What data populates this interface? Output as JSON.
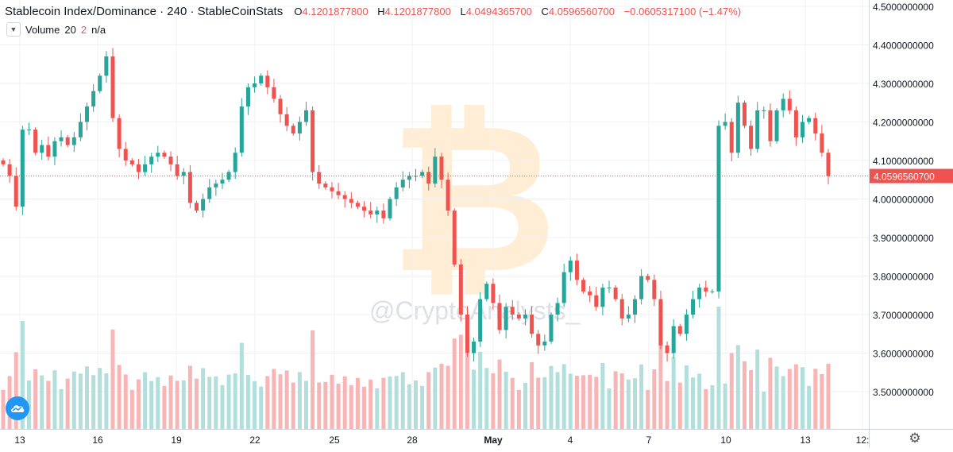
{
  "header": {
    "title": "Stablecoin Index/Dominance · 240 · StableCoinStats",
    "o_label": "O",
    "o_value": "4.1201877800",
    "h_label": "H",
    "h_value": "4.1201877800",
    "l_label": "L",
    "l_value": "4.0494365700",
    "c_label": "C",
    "c_value": "4.0596560700",
    "change": "−0.0605317100 (−1.47%)"
  },
  "volume_indicator": {
    "label": "Volume",
    "param1": "20",
    "param2": "2",
    "value": "n/a"
  },
  "watermark": "@CryptoAnalysts_",
  "colors": {
    "up": "#26a69a",
    "down": "#ef5350",
    "up_volume": "#b2dfdb",
    "down_volume": "#f7b6b5",
    "grid": "#eef0f4",
    "price_line": "#ef5350"
  },
  "chart_data": {
    "type": "candlestick",
    "title": "Stablecoin Index/Dominance",
    "timeframe": "240",
    "source": "StableCoinStats",
    "ylim": [
      3.42,
      4.5
    ],
    "y_ticks": [
      "3.5000000000",
      "3.6000000000",
      "3.7000000000",
      "3.8000000000",
      "3.9000000000",
      "4.0000000000",
      "4.1000000000",
      "4.2000000000",
      "4.3000000000",
      "4.4000000000",
      "4.5000000000"
    ],
    "x_ticks": [
      "13",
      "16",
      "19",
      "22",
      "25",
      "28",
      "May",
      "4",
      "7",
      "10",
      "13",
      "12:"
    ],
    "last_price": "4.0596560700",
    "grid": true,
    "series_close": [
      4.09,
      4.06,
      3.98,
      4.18,
      4.18,
      4.12,
      4.14,
      4.11,
      4.15,
      4.16,
      4.14,
      4.16,
      4.2,
      4.24,
      4.28,
      4.32,
      4.37,
      4.21,
      4.13,
      4.1,
      4.09,
      4.07,
      4.09,
      4.11,
      4.12,
      4.11,
      4.09,
      4.06,
      4.07,
      3.99,
      3.97,
      4.0,
      4.03,
      4.04,
      4.05,
      4.07,
      4.12,
      4.24,
      4.29,
      4.3,
      4.32,
      4.29,
      4.26,
      4.22,
      4.19,
      4.17,
      4.2,
      4.23,
      4.07,
      4.04,
      4.03,
      4.02,
      4.01,
      4.0,
      3.99,
      3.98,
      3.97,
      3.96,
      3.97,
      3.95,
      4.0,
      4.03,
      4.05,
      4.06,
      4.06,
      4.07,
      4.04,
      4.11,
      4.05,
      3.97,
      3.83,
      3.7,
      3.6,
      3.63,
      3.74,
      3.78,
      3.73,
      3.66,
      3.72,
      3.7,
      3.69,
      3.7,
      3.65,
      3.62,
      3.63,
      3.7,
      3.73,
      3.81,
      3.84,
      3.79,
      3.76,
      3.75,
      3.72,
      3.77,
      3.77,
      3.74,
      3.69,
      3.7,
      3.74,
      3.8,
      3.79,
      3.74,
      3.62,
      3.6,
      3.67,
      3.65,
      3.7,
      3.74,
      3.77,
      3.76,
      3.76,
      4.19,
      4.2,
      4.12,
      4.25,
      4.19,
      4.13,
      4.23,
      4.23,
      4.15,
      4.23,
      4.26,
      4.23,
      4.16,
      4.2,
      4.21,
      4.17,
      4.12,
      4.06
    ],
    "volume_range": "relative units (no volume axis printed)"
  }
}
